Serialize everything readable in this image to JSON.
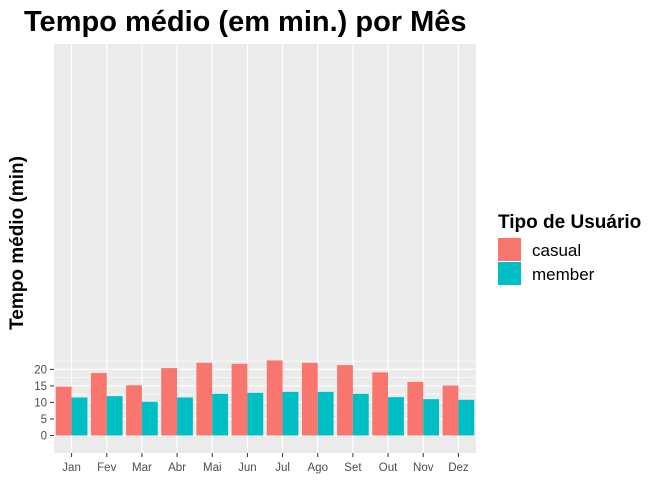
{
  "chart_data": {
    "type": "bar",
    "title": "Tempo médio (em min.) por Mês",
    "xlabel": "",
    "ylabel": "Tempo médio (min)",
    "categories": [
      "Jan",
      "Fev",
      "Mar",
      "Abr",
      "Mai",
      "Jun",
      "Jul",
      "Ago",
      "Set",
      "Out",
      "Nov",
      "Dez"
    ],
    "ylim": [
      0,
      23.5
    ],
    "yticks": [
      0,
      5,
      10,
      15,
      20
    ],
    "ytick_labels": [
      "0",
      "5",
      "10",
      "15",
      "20"
    ],
    "grid": true,
    "legend": {
      "title": "Tipo de Usuário",
      "placement": "right"
    },
    "series": [
      {
        "name": "casual",
        "color": "#F8766D",
        "values": [
          14.8,
          18.9,
          15.2,
          20.4,
          22.0,
          21.7,
          22.7,
          22.0,
          21.3,
          19.1,
          16.2,
          15.1
        ]
      },
      {
        "name": "member",
        "color": "#00BFC4",
        "values": [
          11.5,
          11.9,
          10.2,
          11.5,
          12.6,
          12.9,
          13.2,
          13.2,
          12.6,
          11.6,
          11.0,
          10.8
        ]
      }
    ],
    "panel_background": "#EBEBEB",
    "gridline_color": "#FFFFFF"
  }
}
